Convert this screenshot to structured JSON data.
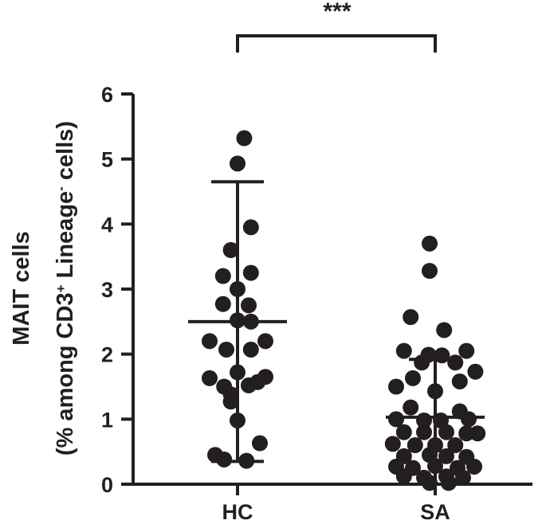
{
  "chart_data": {
    "type": "scatter",
    "subtype": "dot-plot with mean and SD",
    "ylabel": {
      "line1": "MAIT  cells",
      "line2_prefix": "(% among CD3",
      "line2_sup1": "+",
      "line2_middle": " Lineage",
      "line2_sup2": "-",
      "line2_suffix": " cells)"
    },
    "ylim": [
      0,
      6
    ],
    "yticks": [
      "0",
      "1",
      "2",
      "3",
      "4",
      "5",
      "6"
    ],
    "categories": [
      "HC",
      "SA"
    ],
    "significance": "***",
    "grid": false,
    "color": "#231f20",
    "series": [
      {
        "group": "HC",
        "mean": 2.5,
        "sd_low": 0.35,
        "sd_high": 4.65,
        "points": [
          {
            "x": 0.06,
            "y": 5.32
          },
          {
            "x": 0.0,
            "y": 4.93
          },
          {
            "x": 0.12,
            "y": 3.95
          },
          {
            "x": -0.06,
            "y": 3.6
          },
          {
            "x": -0.13,
            "y": 3.2
          },
          {
            "x": 0.12,
            "y": 3.25
          },
          {
            "x": 0.0,
            "y": 3.0
          },
          {
            "x": -0.13,
            "y": 2.77
          },
          {
            "x": 0.1,
            "y": 2.75
          },
          {
            "x": 0.0,
            "y": 2.52
          },
          {
            "x": 0.12,
            "y": 2.5
          },
          {
            "x": -0.25,
            "y": 2.2
          },
          {
            "x": 0.25,
            "y": 2.2
          },
          {
            "x": -0.1,
            "y": 2.07
          },
          {
            "x": 0.12,
            "y": 2.07
          },
          {
            "x": -0.25,
            "y": 1.63
          },
          {
            "x": 0.25,
            "y": 1.65
          },
          {
            "x": 0.0,
            "y": 1.72
          },
          {
            "x": 0.18,
            "y": 1.57
          },
          {
            "x": -0.12,
            "y": 1.5
          },
          {
            "x": 0.1,
            "y": 1.52
          },
          {
            "x": -0.06,
            "y": 1.38
          },
          {
            "x": -0.06,
            "y": 1.27
          },
          {
            "x": 0.0,
            "y": 0.98
          },
          {
            "x": 0.2,
            "y": 0.63
          },
          {
            "x": -0.2,
            "y": 0.45
          },
          {
            "x": -0.12,
            "y": 0.38
          },
          {
            "x": 0.08,
            "y": 0.36
          }
        ]
      },
      {
        "group": "SA",
        "mean": 1.03,
        "sd_low": 0.0,
        "sd_high": 1.92,
        "points": [
          {
            "x": -0.05,
            "y": 3.7
          },
          {
            "x": -0.05,
            "y": 3.28
          },
          {
            "x": -0.22,
            "y": 2.57
          },
          {
            "x": 0.08,
            "y": 2.37
          },
          {
            "x": -0.28,
            "y": 2.05
          },
          {
            "x": 0.28,
            "y": 2.05
          },
          {
            "x": -0.06,
            "y": 1.99
          },
          {
            "x": 0.06,
            "y": 1.98
          },
          {
            "x": 0.18,
            "y": 1.87
          },
          {
            "x": -0.12,
            "y": 1.87
          },
          {
            "x": 0.36,
            "y": 1.73
          },
          {
            "x": -0.2,
            "y": 1.63
          },
          {
            "x": 0.22,
            "y": 1.58
          },
          {
            "x": -0.35,
            "y": 1.5
          },
          {
            "x": 0.0,
            "y": 1.43
          },
          {
            "x": -0.22,
            "y": 1.18
          },
          {
            "x": 0.22,
            "y": 1.12
          },
          {
            "x": -0.35,
            "y": 1.0
          },
          {
            "x": -0.1,
            "y": 0.98
          },
          {
            "x": 0.05,
            "y": 0.98
          },
          {
            "x": 0.3,
            "y": 1.0
          },
          {
            "x": -0.28,
            "y": 0.8
          },
          {
            "x": -0.1,
            "y": 0.8
          },
          {
            "x": 0.1,
            "y": 0.8
          },
          {
            "x": 0.28,
            "y": 0.78
          },
          {
            "x": 0.38,
            "y": 0.78
          },
          {
            "x": -0.38,
            "y": 0.62
          },
          {
            "x": -0.18,
            "y": 0.6
          },
          {
            "x": 0.0,
            "y": 0.6
          },
          {
            "x": 0.18,
            "y": 0.6
          },
          {
            "x": -0.28,
            "y": 0.43
          },
          {
            "x": -0.05,
            "y": 0.45
          },
          {
            "x": 0.1,
            "y": 0.43
          },
          {
            "x": 0.28,
            "y": 0.42
          },
          {
            "x": -0.35,
            "y": 0.27
          },
          {
            "x": -0.2,
            "y": 0.25
          },
          {
            "x": 0.0,
            "y": 0.28
          },
          {
            "x": 0.2,
            "y": 0.25
          },
          {
            "x": 0.35,
            "y": 0.27
          },
          {
            "x": -0.28,
            "y": 0.12
          },
          {
            "x": -0.1,
            "y": 0.1
          },
          {
            "x": 0.1,
            "y": 0.12
          },
          {
            "x": 0.25,
            "y": 0.1
          },
          {
            "x": -0.05,
            "y": 0.02
          },
          {
            "x": 0.12,
            "y": 0.02
          }
        ]
      }
    ]
  }
}
